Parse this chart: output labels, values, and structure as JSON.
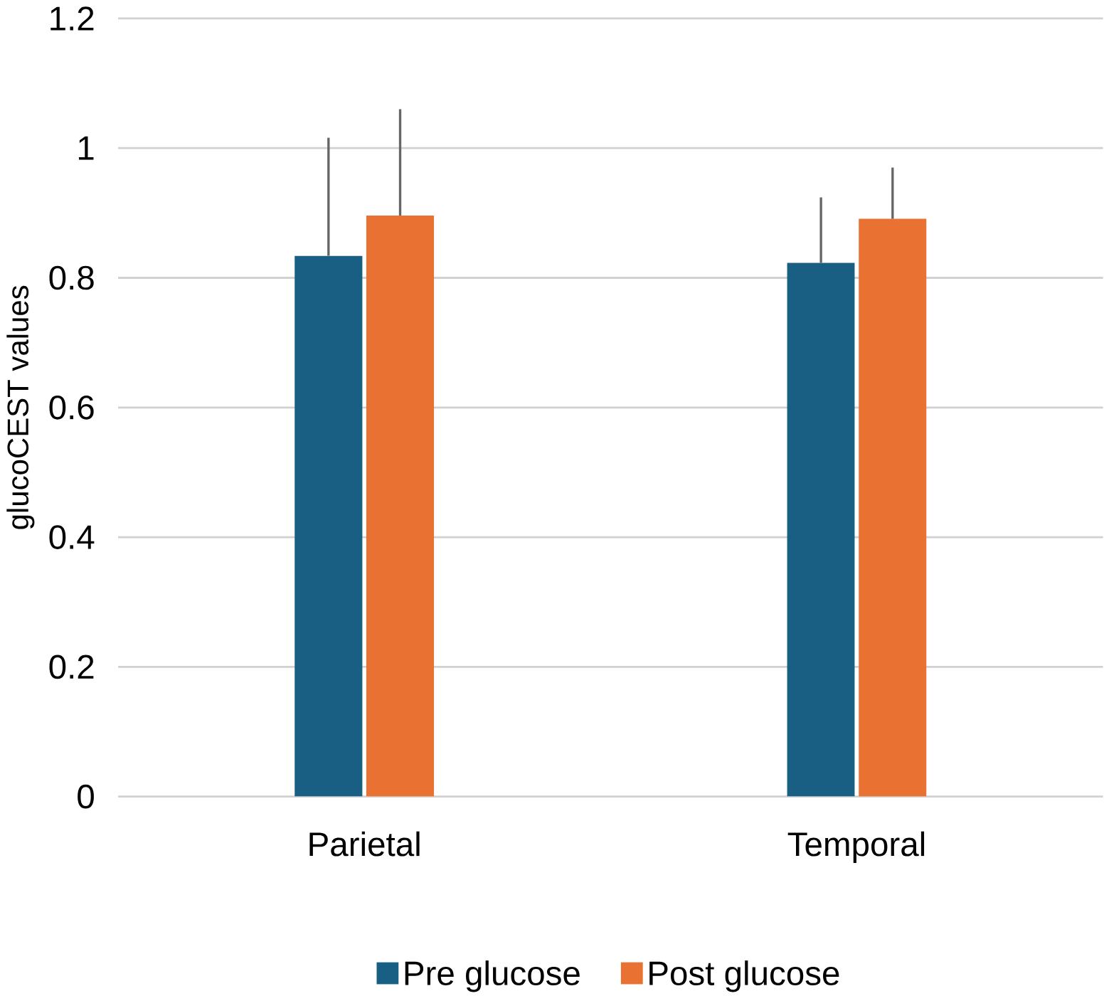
{
  "chart_data": {
    "type": "bar",
    "ylabel": "glucoCEST values",
    "categories": [
      "Parietal",
      "Temporal"
    ],
    "series": [
      {
        "name": "Pre glucose",
        "color": "#195e83",
        "values": [
          0.834,
          0.823
        ],
        "errors": [
          [
            0.834,
            1.016
          ],
          [
            0.823,
            0.924
          ]
        ]
      },
      {
        "name": "Post glucose",
        "color": "#e97132",
        "values": [
          0.896,
          0.891
        ],
        "errors": [
          [
            0.896,
            1.06
          ],
          [
            0.891,
            0.97
          ]
        ]
      }
    ],
    "ylim": [
      0,
      1.2
    ],
    "yticks": [
      0,
      0.2,
      0.4,
      0.6,
      0.8,
      1,
      1.2
    ],
    "grid": "y",
    "legend": "bottom"
  }
}
